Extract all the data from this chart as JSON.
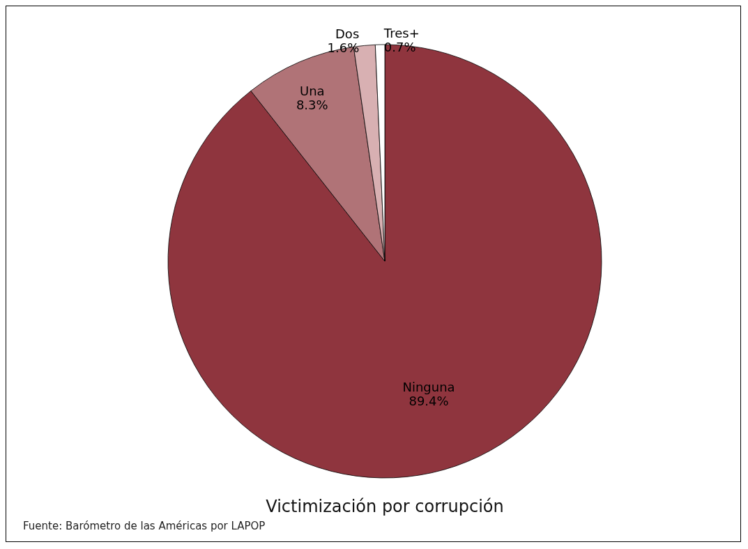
{
  "chart_data": {
    "type": "pie",
    "title": "Victimización por corrupción",
    "annotations": [
      "Fuente: Barómetro de las Américas por LAPOP"
    ],
    "categories": [
      "Ninguna",
      "Una",
      "Dos",
      "Tres+"
    ],
    "values": [
      89.4,
      8.3,
      1.6,
      0.7
    ],
    "colors": [
      "#8f353e",
      "#b07377",
      "#d8b0b2",
      "#ffffff"
    ],
    "value_labels": [
      "89.4%",
      "8.3%",
      "1.6%",
      "0.7%"
    ],
    "legend": false
  }
}
